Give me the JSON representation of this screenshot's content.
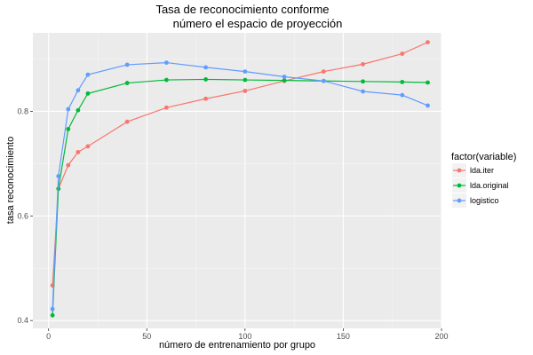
{
  "chart_data": {
    "type": "line",
    "title": [
      "Tasa de reconocimiento conforme",
      "número el espacio de proyección"
    ],
    "xlabel": "número de entrenamiento por grupo",
    "ylabel": "tasa reconocimiento",
    "xlim": [
      -8,
      200
    ],
    "ylim": [
      0.385,
      0.95
    ],
    "x_ticks": [
      0,
      50,
      100,
      150,
      200
    ],
    "x_tick_labels": [
      "0",
      "50",
      "100",
      "150",
      "200"
    ],
    "y_ticks": [
      0.4,
      0.6,
      0.8
    ],
    "y_tick_labels": [
      "0.4",
      "0.6",
      "0.8"
    ],
    "grid": true,
    "legend": {
      "title": "factor(variable)",
      "position": "right"
    },
    "series": [
      {
        "name": "lda.iter",
        "color": "#f8766d",
        "points": [
          [
            2,
            0.467
          ],
          [
            5,
            0.652
          ],
          [
            10,
            0.697
          ],
          [
            15,
            0.722
          ],
          [
            20,
            0.733
          ],
          [
            40,
            0.78
          ],
          [
            60,
            0.807
          ],
          [
            80,
            0.824
          ],
          [
            100,
            0.839
          ],
          [
            120,
            0.858
          ],
          [
            140,
            0.876
          ],
          [
            160,
            0.89
          ],
          [
            180,
            0.91
          ],
          [
            193,
            0.932
          ]
        ]
      },
      {
        "name": "lda.original",
        "color": "#00ba38",
        "points": [
          [
            2,
            0.41
          ],
          [
            5,
            0.652
          ],
          [
            10,
            0.766
          ],
          [
            15,
            0.802
          ],
          [
            20,
            0.834
          ],
          [
            40,
            0.854
          ],
          [
            60,
            0.86
          ],
          [
            80,
            0.861
          ],
          [
            100,
            0.86
          ],
          [
            120,
            0.859
          ],
          [
            140,
            0.858
          ],
          [
            160,
            0.857
          ],
          [
            180,
            0.856
          ],
          [
            193,
            0.855
          ]
        ]
      },
      {
        "name": "logistico",
        "color": "#619cff",
        "points": [
          [
            2,
            0.422
          ],
          [
            5,
            0.676
          ],
          [
            10,
            0.804
          ],
          [
            15,
            0.84
          ],
          [
            20,
            0.87
          ],
          [
            40,
            0.889
          ],
          [
            60,
            0.893
          ],
          [
            80,
            0.884
          ],
          [
            100,
            0.876
          ],
          [
            120,
            0.866
          ],
          [
            140,
            0.858
          ],
          [
            160,
            0.838
          ],
          [
            180,
            0.831
          ],
          [
            193,
            0.811
          ]
        ]
      }
    ]
  }
}
